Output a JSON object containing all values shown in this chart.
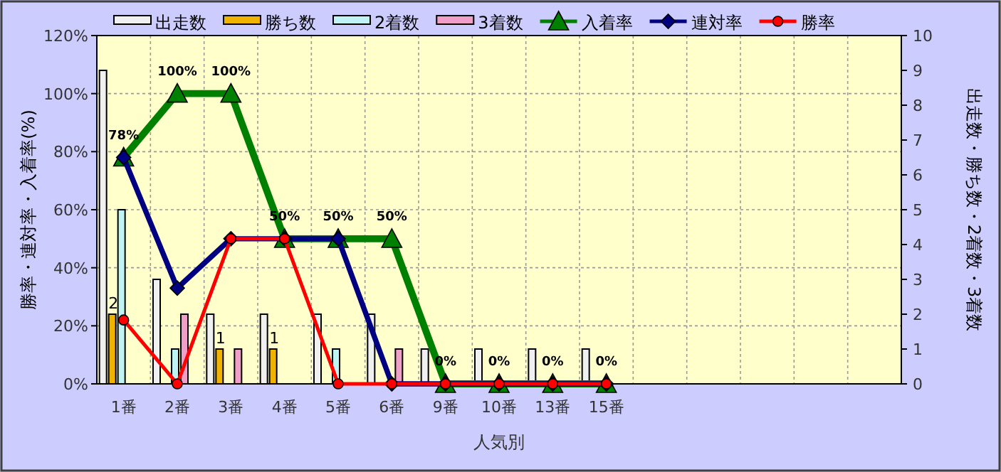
{
  "chart_data": {
    "type": "bar",
    "xlabel": "人気別",
    "ylabel": "勝率・連対率・入着率(%)",
    "y2label": "出走数・勝ち数・2着数・3着数",
    "categories": [
      "1番",
      "2番",
      "3番",
      "4番",
      "5番",
      "6番",
      "9番",
      "10番",
      "13番",
      "15番",
      null,
      null,
      null,
      null,
      null
    ],
    "series": [
      {
        "name": "出走数",
        "axis": "y2",
        "color": "#f0f0f0",
        "values": [
          9,
          3,
          2,
          2,
          2,
          2,
          1,
          1,
          1,
          1,
          null,
          null,
          null,
          null,
          null
        ]
      },
      {
        "name": "勝ち数",
        "axis": "y2",
        "color": "#f0b400",
        "values": [
          2,
          0,
          1,
          1,
          0,
          0,
          0,
          0,
          0,
          0,
          null,
          null,
          null,
          null,
          null
        ],
        "value_labels": [
          "2",
          null,
          "1",
          "1",
          null,
          null,
          null,
          null,
          null,
          null,
          null,
          null,
          null,
          null,
          null
        ]
      },
      {
        "name": "2着数",
        "axis": "y2",
        "color": "#c0f4f4",
        "values": [
          5,
          1,
          0,
          0,
          1,
          0,
          0,
          0,
          0,
          0,
          null,
          null,
          null,
          null,
          null
        ]
      },
      {
        "name": "3着数",
        "axis": "y2",
        "color": "#f0a0c8",
        "values": [
          0,
          2,
          1,
          0,
          0,
          1,
          0,
          0,
          0,
          0,
          null,
          null,
          null,
          null,
          null
        ]
      },
      {
        "name": "入着率",
        "type": "line",
        "marker": "triangle",
        "color": "#008000",
        "values": [
          78,
          100,
          100,
          50,
          50,
          50,
          0,
          0,
          0,
          0,
          null,
          null,
          null,
          null,
          null
        ],
        "value_labels": [
          "78%",
          "100%",
          "100%",
          "50%",
          "50%",
          "50%",
          "0%",
          "0%",
          "0%",
          "0%",
          null,
          null,
          null,
          null,
          null
        ]
      },
      {
        "name": "連対率",
        "type": "line",
        "marker": "diamond",
        "color": "#000080",
        "values": [
          78,
          33,
          50,
          50,
          50,
          0,
          0,
          0,
          0,
          0,
          null,
          null,
          null,
          null,
          null
        ]
      },
      {
        "name": "勝率",
        "type": "line",
        "marker": "circle",
        "color": "#ff0000",
        "values": [
          22,
          0,
          50,
          50,
          0,
          0,
          0,
          0,
          0,
          0,
          null,
          null,
          null,
          null,
          null
        ]
      }
    ],
    "ylim": [
      0,
      120
    ],
    "yticks": [
      {
        "value": 0,
        "label": "0%"
      },
      {
        "value": 20,
        "label": "20%"
      },
      {
        "value": 40,
        "label": "40%"
      },
      {
        "value": 60,
        "label": "60%"
      },
      {
        "value": 80,
        "label": "80%"
      },
      {
        "value": 100,
        "label": "100%"
      },
      {
        "value": 120,
        "label": "120%"
      }
    ],
    "y2lim": [
      0,
      10
    ],
    "y2ticks": [
      0,
      1,
      2,
      3,
      4,
      5,
      6,
      7,
      8,
      9,
      10
    ],
    "grid": true,
    "legend": "top"
  }
}
